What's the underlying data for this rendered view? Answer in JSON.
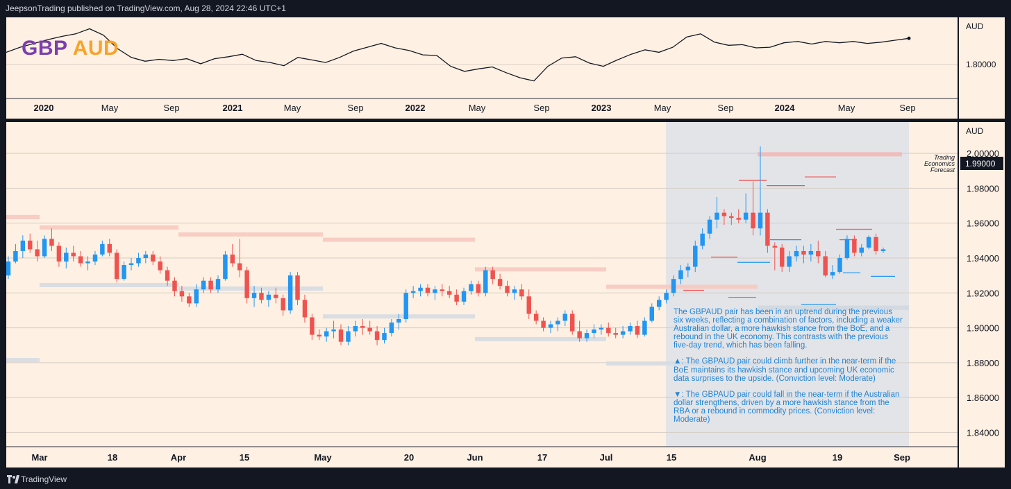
{
  "header": {
    "publish_line": "JeepsonTrading published on TradingView.com, Aug 28, 2024 22:46 UTC+1"
  },
  "top_panel": {
    "symbol_base": "GBP",
    "symbol_quote": "AUD",
    "currency_label": "AUD",
    "price_label": "1.80000",
    "x_labels": [
      "2020",
      "May",
      "Sep",
      "2021",
      "May",
      "Sep",
      "2022",
      "May",
      "Sep",
      "2023",
      "May",
      "Sep",
      "2024",
      "May",
      "Sep"
    ]
  },
  "main_panel": {
    "currency_label": "AUD",
    "forecast_label_lines": [
      "Trading",
      "Economics",
      "Forecast"
    ],
    "forecast_value": "1.99000",
    "x_labels": [
      "Mar",
      "18",
      "Apr",
      "15",
      "May",
      "20",
      "Jun",
      "17",
      "Jul",
      "15",
      "Aug",
      "19",
      "Sep"
    ],
    "annotation": {
      "summary": "The GBPAUD pair has been in an uptrend during the previous six weeks, reflecting a combination of factors, including a weaker Australian dollar, a more hawkish stance from the BoE, and a rebound in the UK economy. This contrasts with the previous five-day trend, which has been falling.",
      "bull": "▲: The GBPAUD pair could climb further in the near-term if the BoE maintains its hawkish stance and upcoming UK economic data surprises to the upside. (Conviction level: Moderate)",
      "bear": "▼: The GBPAUD pair could fall in the near-term if the Australian dollar strengthens, driven by a more hawkish stance from the RBA or a rebound in commodity prices. (Conviction level: Moderate)"
    }
  },
  "footer": {
    "brand": "TradingView"
  },
  "colors": {
    "background": "#131722",
    "panel": "#fef0e2",
    "up": "#2196f3",
    "down": "#ef5350",
    "forecast_zone": "#e2e4e8",
    "annotation_text": "#2184d6"
  },
  "chart_data": [
    {
      "type": "line",
      "title": "GBP AUD",
      "series": [
        {
          "name": "",
          "values": [
            1.815,
            1.823,
            1.829,
            1.835,
            1.84,
            1.844,
            1.852,
            1.842,
            1.821,
            1.807,
            1.801,
            1.804,
            1.802,
            1.805,
            1.797,
            1.805,
            1.808,
            1.812,
            1.802,
            1.799,
            1.794,
            1.807,
            1.803,
            1.799,
            1.807,
            1.817,
            1.823,
            1.829,
            1.822,
            1.818,
            1.811,
            1.81,
            1.793,
            1.785,
            1.789,
            1.792,
            1.783,
            1.775,
            1.77,
            1.793,
            1.806,
            1.808,
            1.798,
            1.793,
            1.803,
            1.812,
            1.819,
            1.815,
            1.823,
            1.839,
            1.844,
            1.831,
            1.826,
            1.827,
            1.822,
            1.823,
            1.83,
            1.832,
            1.828,
            1.832,
            1.83,
            1.832,
            1.829,
            1.831,
            1.834,
            1.837
          ]
        }
      ],
      "ylabel": "AUD",
      "ylim": [
        1.75,
        1.87
      ]
    },
    {
      "type": "bar",
      "subtype": "candlestick",
      "ylabel": "AUD",
      "ylim": [
        1.835,
        2.01
      ],
      "y_ticks": [
        1.84,
        1.86,
        1.88,
        1.9,
        1.92,
        1.94,
        1.96,
        1.98,
        2.0
      ],
      "forecast": 1.99,
      "candles_ohlc": [
        [
          1.93,
          1.941,
          1.928,
          1.938
        ],
        [
          1.938,
          1.948,
          1.937,
          1.944
        ],
        [
          1.944,
          1.953,
          1.94,
          1.95
        ],
        [
          1.95,
          1.954,
          1.943,
          1.945
        ],
        [
          1.945,
          1.95,
          1.938,
          1.941
        ],
        [
          1.941,
          1.953,
          1.94,
          1.951
        ],
        [
          1.951,
          1.957,
          1.944,
          1.947
        ],
        [
          1.947,
          1.949,
          1.935,
          1.938
        ],
        [
          1.938,
          1.946,
          1.934,
          1.943
        ],
        [
          1.943,
          1.947,
          1.938,
          1.941
        ],
        [
          1.941,
          1.944,
          1.935,
          1.937
        ],
        [
          1.937,
          1.941,
          1.933,
          1.938
        ],
        [
          1.938,
          1.944,
          1.936,
          1.942
        ],
        [
          1.942,
          1.95,
          1.941,
          1.948
        ],
        [
          1.948,
          1.951,
          1.941,
          1.943
        ],
        [
          1.943,
          1.945,
          1.926,
          1.928
        ],
        [
          1.928,
          1.938,
          1.927,
          1.936
        ],
        [
          1.936,
          1.94,
          1.933,
          1.937
        ],
        [
          1.937,
          1.943,
          1.935,
          1.94
        ],
        [
          1.94,
          1.944,
          1.937,
          1.942
        ],
        [
          1.942,
          1.944,
          1.936,
          1.938
        ],
        [
          1.938,
          1.941,
          1.931,
          1.933
        ],
        [
          1.933,
          1.935,
          1.924,
          1.927
        ],
        [
          1.927,
          1.929,
          1.918,
          1.921
        ],
        [
          1.921,
          1.924,
          1.915,
          1.918
        ],
        [
          1.918,
          1.92,
          1.912,
          1.914
        ],
        [
          1.914,
          1.925,
          1.912,
          1.922
        ],
        [
          1.922,
          1.929,
          1.92,
          1.927
        ],
        [
          1.927,
          1.929,
          1.92,
          1.922
        ],
        [
          1.922,
          1.93,
          1.92,
          1.928
        ],
        [
          1.928,
          1.944,
          1.927,
          1.942
        ],
        [
          1.942,
          1.948,
          1.935,
          1.937
        ],
        [
          1.937,
          1.951,
          1.929,
          1.933
        ],
        [
          1.933,
          1.935,
          1.914,
          1.917
        ],
        [
          1.917,
          1.924,
          1.912,
          1.92
        ],
        [
          1.92,
          1.923,
          1.914,
          1.916
        ],
        [
          1.916,
          1.921,
          1.912,
          1.919
        ],
        [
          1.919,
          1.923,
          1.914,
          1.917
        ],
        [
          1.917,
          1.919,
          1.907,
          1.91
        ],
        [
          1.91,
          1.932,
          1.908,
          1.93
        ],
        [
          1.93,
          1.932,
          1.913,
          1.916
        ],
        [
          1.916,
          1.919,
          1.903,
          1.906
        ],
        [
          1.906,
          1.908,
          1.893,
          1.896
        ],
        [
          1.896,
          1.899,
          1.893,
          1.895
        ],
        [
          1.895,
          1.9,
          1.892,
          1.898
        ],
        [
          1.898,
          1.904,
          1.894,
          1.899
        ],
        [
          1.899,
          1.902,
          1.89,
          1.892
        ],
        [
          1.892,
          1.901,
          1.89,
          1.898
        ],
        [
          1.898,
          1.904,
          1.895,
          1.901
        ],
        [
          1.901,
          1.905,
          1.896,
          1.9
        ],
        [
          1.9,
          1.904,
          1.896,
          1.898
        ],
        [
          1.898,
          1.901,
          1.89,
          1.893
        ],
        [
          1.893,
          1.9,
          1.891,
          1.897
        ],
        [
          1.897,
          1.905,
          1.895,
          1.903
        ],
        [
          1.903,
          1.908,
          1.899,
          1.905
        ],
        [
          1.905,
          1.922,
          1.903,
          1.92
        ],
        [
          1.92,
          1.924,
          1.917,
          1.921
        ],
        [
          1.921,
          1.925,
          1.918,
          1.923
        ],
        [
          1.923,
          1.925,
          1.918,
          1.92
        ],
        [
          1.92,
          1.924,
          1.916,
          1.922
        ],
        [
          1.922,
          1.925,
          1.918,
          1.921
        ],
        [
          1.921,
          1.924,
          1.917,
          1.919
        ],
        [
          1.919,
          1.922,
          1.913,
          1.915
        ],
        [
          1.915,
          1.923,
          1.913,
          1.921
        ],
        [
          1.921,
          1.927,
          1.919,
          1.925
        ],
        [
          1.925,
          1.927,
          1.918,
          1.92
        ],
        [
          1.92,
          1.935,
          1.918,
          1.933
        ],
        [
          1.933,
          1.935,
          1.925,
          1.928
        ],
        [
          1.928,
          1.931,
          1.922,
          1.924
        ],
        [
          1.924,
          1.927,
          1.918,
          1.92
        ],
        [
          1.92,
          1.924,
          1.916,
          1.922
        ],
        [
          1.922,
          1.925,
          1.916,
          1.918
        ],
        [
          1.918,
          1.922,
          1.905,
          1.908
        ],
        [
          1.908,
          1.91,
          1.902,
          1.904
        ],
        [
          1.904,
          1.906,
          1.898,
          1.9
        ],
        [
          1.9,
          1.904,
          1.897,
          1.902
        ],
        [
          1.902,
          1.906,
          1.898,
          1.904
        ],
        [
          1.904,
          1.91,
          1.901,
          1.908
        ],
        [
          1.908,
          1.91,
          1.896,
          1.898
        ],
        [
          1.898,
          1.904,
          1.892,
          1.894
        ],
        [
          1.894,
          1.899,
          1.892,
          1.897
        ],
        [
          1.897,
          1.902,
          1.894,
          1.899
        ],
        [
          1.899,
          1.902,
          1.896,
          1.9
        ],
        [
          1.9,
          1.903,
          1.895,
          1.897
        ],
        [
          1.897,
          1.9,
          1.894,
          1.896
        ],
        [
          1.896,
          1.901,
          1.894,
          1.898
        ],
        [
          1.898,
          1.903,
          1.896,
          1.901
        ],
        [
          1.901,
          1.904,
          1.894,
          1.896
        ],
        [
          1.896,
          1.906,
          1.895,
          1.904
        ],
        [
          1.904,
          1.914,
          1.903,
          1.912
        ],
        [
          1.912,
          1.918,
          1.91,
          1.916
        ],
        [
          1.916,
          1.922,
          1.914,
          1.92
        ],
        [
          1.92,
          1.93,
          1.918,
          1.928
        ],
        [
          1.928,
          1.936,
          1.925,
          1.933
        ],
        [
          1.933,
          1.937,
          1.929,
          1.935
        ],
        [
          1.935,
          1.95,
          1.932,
          1.947
        ],
        [
          1.947,
          1.957,
          1.945,
          1.954
        ],
        [
          1.954,
          1.964,
          1.951,
          1.962
        ],
        [
          1.962,
          1.975,
          1.957,
          1.966
        ],
        [
          1.966,
          1.968,
          1.959,
          1.964
        ],
        [
          1.964,
          1.966,
          1.959,
          1.963
        ],
        [
          1.963,
          1.968,
          1.96,
          1.962
        ],
        [
          1.962,
          1.977,
          1.96,
          1.966
        ],
        [
          1.966,
          1.984,
          1.953,
          1.957
        ],
        [
          1.957,
          2.004,
          1.953,
          1.966
        ],
        [
          1.966,
          1.968,
          1.943,
          1.947
        ],
        [
          1.947,
          1.949,
          1.933,
          1.946
        ],
        [
          1.946,
          1.948,
          1.932,
          1.935
        ],
        [
          1.935,
          1.944,
          1.932,
          1.941
        ],
        [
          1.941,
          1.947,
          1.938,
          1.944
        ],
        [
          1.944,
          1.947,
          1.937,
          1.942
        ],
        [
          1.942,
          1.948,
          1.938,
          1.944
        ],
        [
          1.944,
          1.95,
          1.937,
          1.941
        ],
        [
          1.941,
          1.944,
          1.929,
          1.93
        ],
        [
          1.93,
          1.936,
          1.928,
          1.932
        ],
        [
          1.932,
          1.942,
          1.931,
          1.94
        ],
        [
          1.94,
          1.953,
          1.939,
          1.951
        ],
        [
          1.951,
          1.953,
          1.941,
          1.943
        ],
        [
          1.943,
          1.948,
          1.941,
          1.946
        ],
        [
          1.946,
          1.953,
          1.945,
          1.952
        ],
        [
          1.952,
          1.954,
          1.942,
          1.944
        ],
        [
          1.944,
          1.946,
          1.943,
          1.945
        ]
      ]
    }
  ]
}
